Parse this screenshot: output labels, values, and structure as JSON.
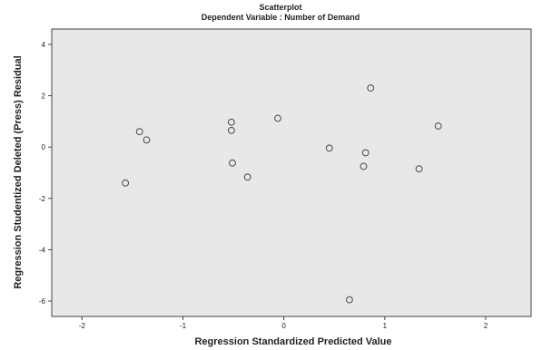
{
  "chart_data": {
    "type": "scatter",
    "title": "Scatterplot",
    "subtitle": "Dependent Variable : Number of Demand",
    "xlabel": "Regression Standardized Predicted Value",
    "ylabel": "Regression Studentized Deleted (Press) Residual",
    "xlim": [
      -2.3,
      2.45
    ],
    "ylim": [
      -6.6,
      4.6
    ],
    "x_ticks": [
      -2,
      -1,
      0,
      1,
      2
    ],
    "x_tick_labels": [
      "-2",
      "-1",
      "0",
      "1",
      "2"
    ],
    "y_ticks": [
      -6,
      -4,
      -2,
      0,
      2,
      4
    ],
    "y_tick_labels": [
      "-6",
      "-4",
      "-2",
      "0",
      "2",
      "4"
    ],
    "grid": false,
    "plot_background": "#e8e8e8",
    "marker_color": "#555555",
    "points": [
      {
        "x": -1.57,
        "y": -1.4
      },
      {
        "x": -1.43,
        "y": 0.6
      },
      {
        "x": -1.36,
        "y": 0.28
      },
      {
        "x": -0.52,
        "y": 0.97
      },
      {
        "x": -0.52,
        "y": 0.65
      },
      {
        "x": -0.51,
        "y": -0.62
      },
      {
        "x": -0.36,
        "y": -1.17
      },
      {
        "x": -0.06,
        "y": 1.12
      },
      {
        "x": 0.45,
        "y": -0.04
      },
      {
        "x": 0.65,
        "y": -5.95
      },
      {
        "x": 0.79,
        "y": -0.75
      },
      {
        "x": 0.81,
        "y": -0.22
      },
      {
        "x": 0.86,
        "y": 2.3
      },
      {
        "x": 1.34,
        "y": -0.85
      },
      {
        "x": 1.53,
        "y": 0.82
      }
    ]
  }
}
